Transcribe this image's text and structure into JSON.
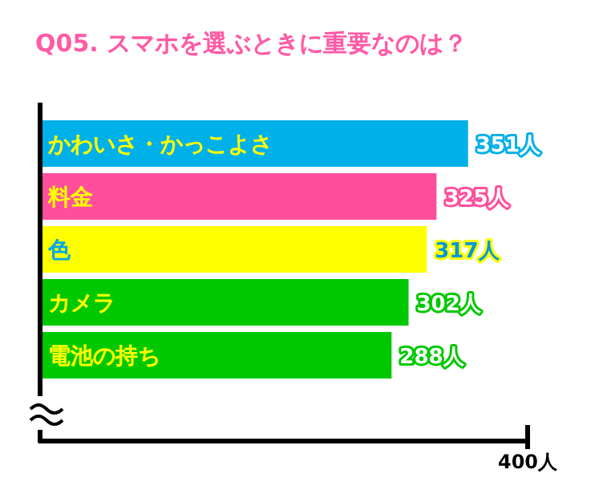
{
  "chart_data": {
    "type": "bar",
    "orientation": "horizontal",
    "title": "Q05. スマホを選ぶときに重要なのは？",
    "categories": [
      "かわいさ・かっこよさ",
      "料金",
      "色",
      "カメラ",
      "電池の持ち"
    ],
    "values": [
      351,
      325,
      317,
      302,
      288
    ],
    "colors": [
      "#00b0e8",
      "#ff4f9c",
      "#ffff00",
      "#00c800",
      "#00c800"
    ],
    "value_labels": [
      "351人",
      "325人",
      "317人",
      "302人",
      "288人"
    ],
    "xlim": [
      0,
      400
    ],
    "xticks": [
      {
        "value": 400,
        "label": "400人"
      }
    ]
  }
}
